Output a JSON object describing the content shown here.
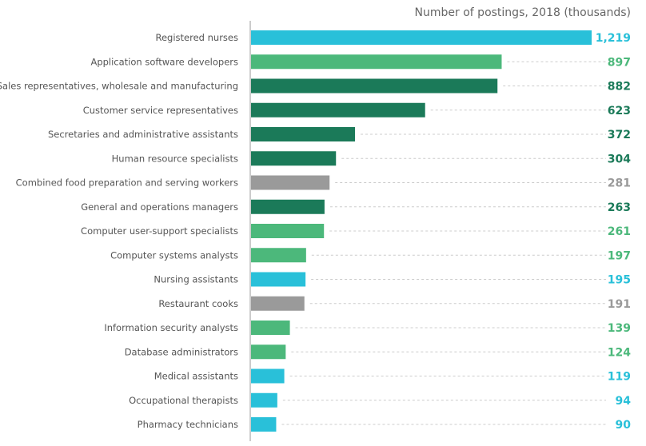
{
  "chart_data": {
    "type": "bar",
    "orientation": "horizontal",
    "title": "Number of postings, 2018 (thousands)",
    "categories": [
      "Registered nurses",
      "Application software developers",
      "Sales representatives, wholesale and manufacturing",
      "Customer service representatives",
      "Secretaries and administrative assistants",
      "Human resource specialists",
      "Combined food preparation and serving workers",
      "General and operations managers",
      "Computer user-support specialists",
      "Computer systems analysts",
      "Nursing assistants",
      "Restaurant cooks",
      "Information security analysts",
      "Database administrators",
      "Medical assistants",
      "Occupational therapists",
      "Pharmacy technicians"
    ],
    "values": [
      1219,
      897,
      882,
      623,
      372,
      304,
      281,
      263,
      261,
      197,
      195,
      191,
      139,
      124,
      119,
      94,
      90
    ],
    "value_labels": [
      "1,219",
      "897",
      "882",
      "623",
      "372",
      "304",
      "281",
      "263",
      "261",
      "197",
      "195",
      "191",
      "139",
      "124",
      "119",
      "94",
      "90"
    ],
    "bar_colors": [
      "#29c0d9",
      "#4cb87b",
      "#1b7a59",
      "#1b7a59",
      "#1b7a59",
      "#1b7a59",
      "#9a9a9a",
      "#1b7a59",
      "#4cb87b",
      "#4cb87b",
      "#29c0d9",
      "#9a9a9a",
      "#4cb87b",
      "#4cb87b",
      "#29c0d9",
      "#29c0d9",
      "#29c0d9"
    ],
    "xlim": [
      0,
      1219
    ],
    "grid": false
  }
}
